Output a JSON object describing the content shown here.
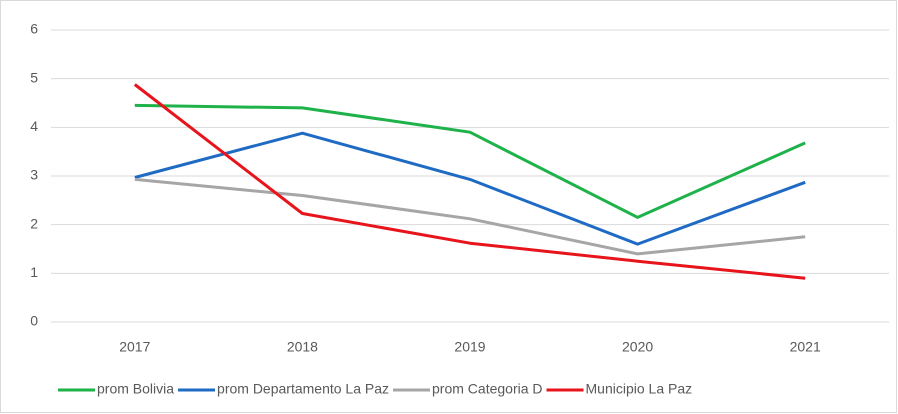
{
  "chart_data": {
    "type": "line",
    "categories": [
      "2017",
      "2018",
      "2019",
      "2020",
      "2021"
    ],
    "series": [
      {
        "name": "prom Bolivia",
        "color": "#1fb24a",
        "values": [
          4.45,
          4.4,
          3.9,
          2.15,
          3.68
        ]
      },
      {
        "name": "prom Departamento La Paz",
        "color": "#1f6bc4",
        "values": [
          2.97,
          3.88,
          2.93,
          1.6,
          2.87
        ]
      },
      {
        "name": "prom Categoria D",
        "color": "#a6a6a6",
        "values": [
          2.93,
          2.6,
          2.12,
          1.4,
          1.75
        ]
      },
      {
        "name": "Municipio La Paz",
        "color": "#e8141c",
        "values": [
          4.88,
          2.23,
          1.62,
          1.25,
          0.9
        ]
      }
    ],
    "ylim": [
      0,
      6
    ],
    "yticks": [
      0,
      1,
      2,
      3,
      4,
      5,
      6
    ],
    "grid": true,
    "legend": "bottom"
  }
}
